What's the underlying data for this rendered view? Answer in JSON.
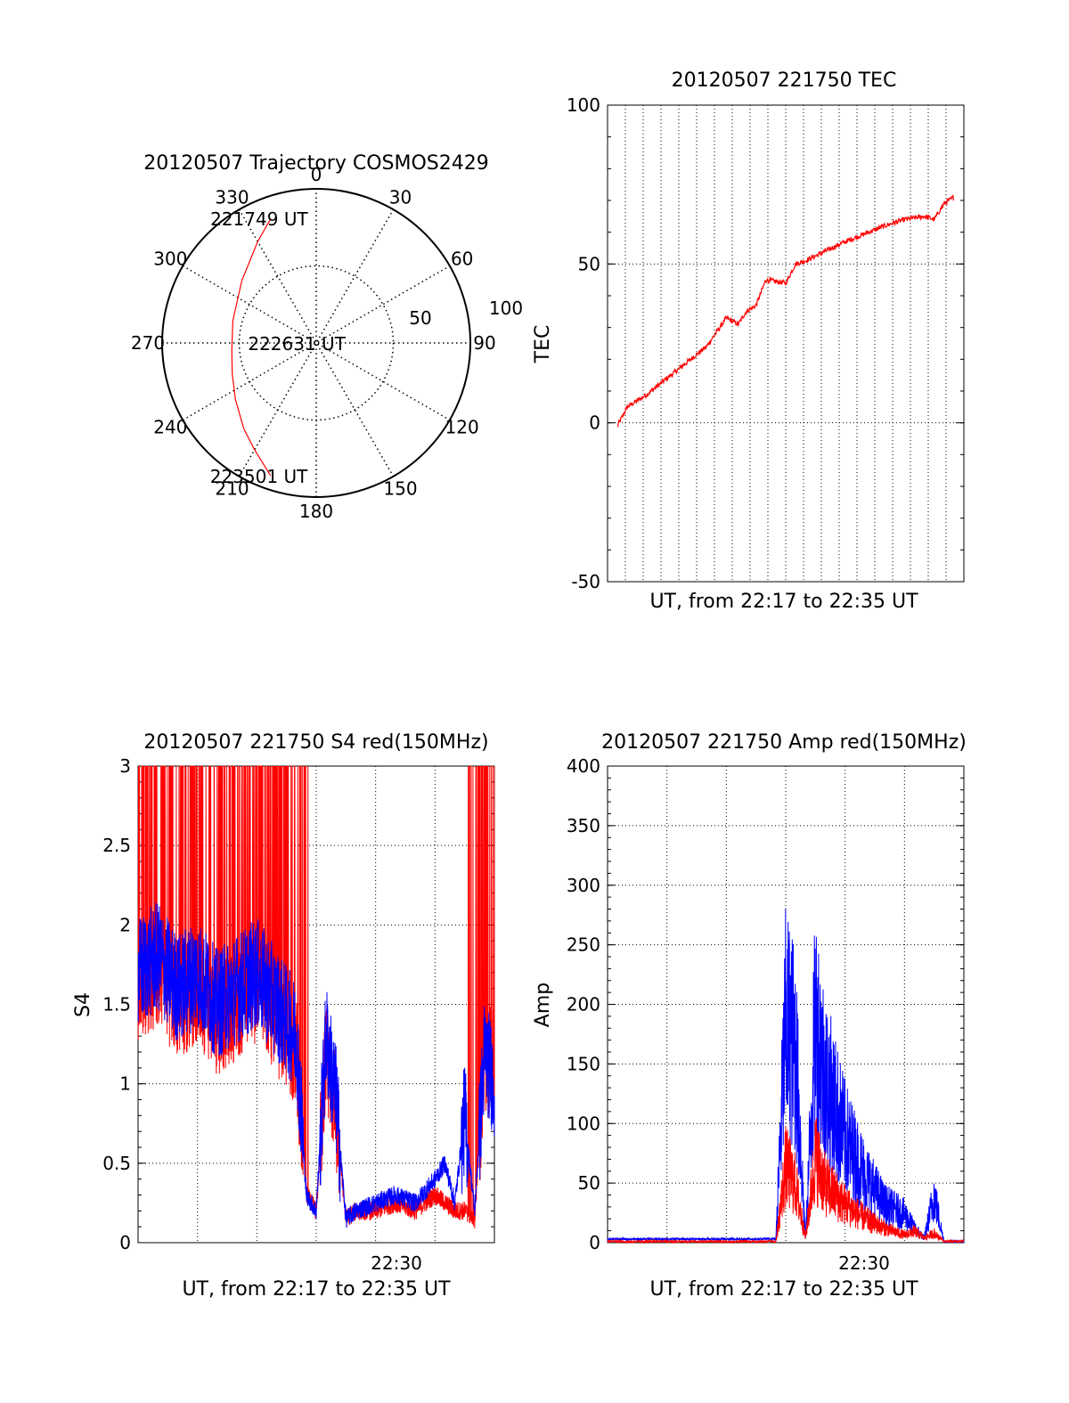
{
  "colors": {
    "red": "#ff0000",
    "blue": "#0000ff",
    "axis": "#000000",
    "grid": "#000000"
  },
  "chart_data": [
    {
      "type": "polar",
      "title": "20120507 Trajectory COSMOS2429",
      "grid": true,
      "angle_labels": [
        "0",
        "30",
        "60",
        "90",
        "120",
        "150",
        "180",
        "210",
        "240",
        "270",
        "300",
        "330"
      ],
      "radius_labels": [
        "50",
        "100"
      ],
      "elevation_rings": [
        50,
        100
      ],
      "annotations": [
        {
          "text": "221749 UT",
          "az": 340,
          "r": 86
        },
        {
          "text": "222631 UT",
          "az": 270,
          "r": 5
        },
        {
          "text": "223501 UT",
          "az": 199,
          "r": 91
        }
      ],
      "series": [
        {
          "color": "red",
          "az": [
            340,
            330,
            310,
            285,
            265,
            250,
            235,
            220,
            210,
            199
          ],
          "r": [
            86,
            76,
            63,
            56,
            55,
            58,
            64,
            73,
            80,
            91
          ]
        }
      ]
    },
    {
      "type": "line",
      "title": "20120507 221750 TEC",
      "xlabel": "UT, from 22:17 to 22:35 UT",
      "ylabel": "TEC",
      "ylim": [
        -50,
        100
      ],
      "yticks": [
        "100",
        "50",
        "0",
        "-50"
      ],
      "grid": true,
      "series": [
        {
          "color": "red",
          "x": [
            0.5,
            1,
            2,
            3,
            4,
            5,
            6,
            6.6,
            7,
            7.5,
            8,
            9,
            9.5,
            10,
            11,
            12,
            13,
            14,
            15,
            16,
            16.5,
            17,
            17.5
          ],
          "y": [
            -1,
            5,
            9,
            14,
            19,
            24,
            33,
            31,
            35,
            37,
            45,
            44,
            50,
            51,
            54,
            57,
            59.5,
            62,
            64,
            65,
            64,
            69,
            71
          ]
        }
      ]
    },
    {
      "type": "line",
      "title": "20120507 221750 S4 red(150MHz)",
      "xlabel": "UT, from 22:17 to 22:35 UT",
      "ylabel": "S4",
      "ylim": [
        0,
        3
      ],
      "yticks": [
        "3",
        "2.5",
        "2",
        "1.5",
        "1",
        "0.5",
        "0"
      ],
      "xticks": [
        "22:30"
      ],
      "grid": true,
      "series": [
        {
          "color": "red",
          "x": [
            0,
            1,
            2,
            3,
            4,
            5,
            6,
            7,
            8,
            8.5,
            9,
            9.5,
            10,
            10.5,
            11,
            12,
            13,
            14,
            15,
            16,
            16.5,
            17,
            17.5,
            18
          ],
          "y": [
            1.6,
            1.7,
            1.5,
            1.6,
            1.4,
            1.5,
            1.6,
            1.4,
            1.2,
            0.3,
            0.2,
            1.2,
            0.8,
            0.15,
            0.2,
            0.2,
            0.25,
            0.2,
            0.3,
            0.2,
            0.2,
            0.15,
            1.1,
            1.2
          ]
        },
        {
          "color": "blue",
          "x": [
            0,
            1,
            2,
            3,
            4,
            5,
            6,
            7,
            8,
            8.5,
            9,
            9.5,
            10,
            10.5,
            11,
            12,
            13,
            14,
            15,
            15.5,
            16,
            16.5,
            17,
            17.5,
            18
          ],
          "y": [
            1.7,
            1.8,
            1.6,
            1.7,
            1.5,
            1.6,
            1.7,
            1.5,
            1.3,
            0.3,
            0.2,
            1.3,
            0.9,
            0.15,
            0.2,
            0.25,
            0.3,
            0.25,
            0.4,
            0.5,
            0.25,
            0.8,
            0.2,
            1.2,
            1.0
          ]
        }
      ]
    },
    {
      "type": "line",
      "title": "20120507 221750 Amp red(150MHz)",
      "xlabel": "UT, from 22:17 to 22:35 UT",
      "ylabel": "Amp",
      "ylim": [
        0,
        400
      ],
      "yticks": [
        "400",
        "350",
        "300",
        "250",
        "200",
        "150",
        "100",
        "50",
        "0"
      ],
      "xticks": [
        "22:30"
      ],
      "grid": true,
      "series": [
        {
          "color": "red",
          "x": [
            0,
            8.5,
            9.0,
            9.5,
            10,
            10.5,
            11,
            12,
            13,
            14,
            15,
            15.5,
            16,
            16.5,
            17,
            18
          ],
          "y": [
            0,
            0,
            80,
            60,
            5,
            90,
            60,
            40,
            25,
            15,
            8,
            12,
            5,
            10,
            0,
            0
          ]
        },
        {
          "color": "blue",
          "x": [
            0,
            8.5,
            9.0,
            9.5,
            10,
            10.5,
            11,
            12,
            13,
            14,
            15,
            15.5,
            16,
            16.5,
            17,
            18
          ],
          "y": [
            2,
            2,
            230,
            200,
            3,
            230,
            170,
            110,
            70,
            40,
            30,
            15,
            5,
            50,
            0,
            0
          ]
        }
      ]
    }
  ]
}
